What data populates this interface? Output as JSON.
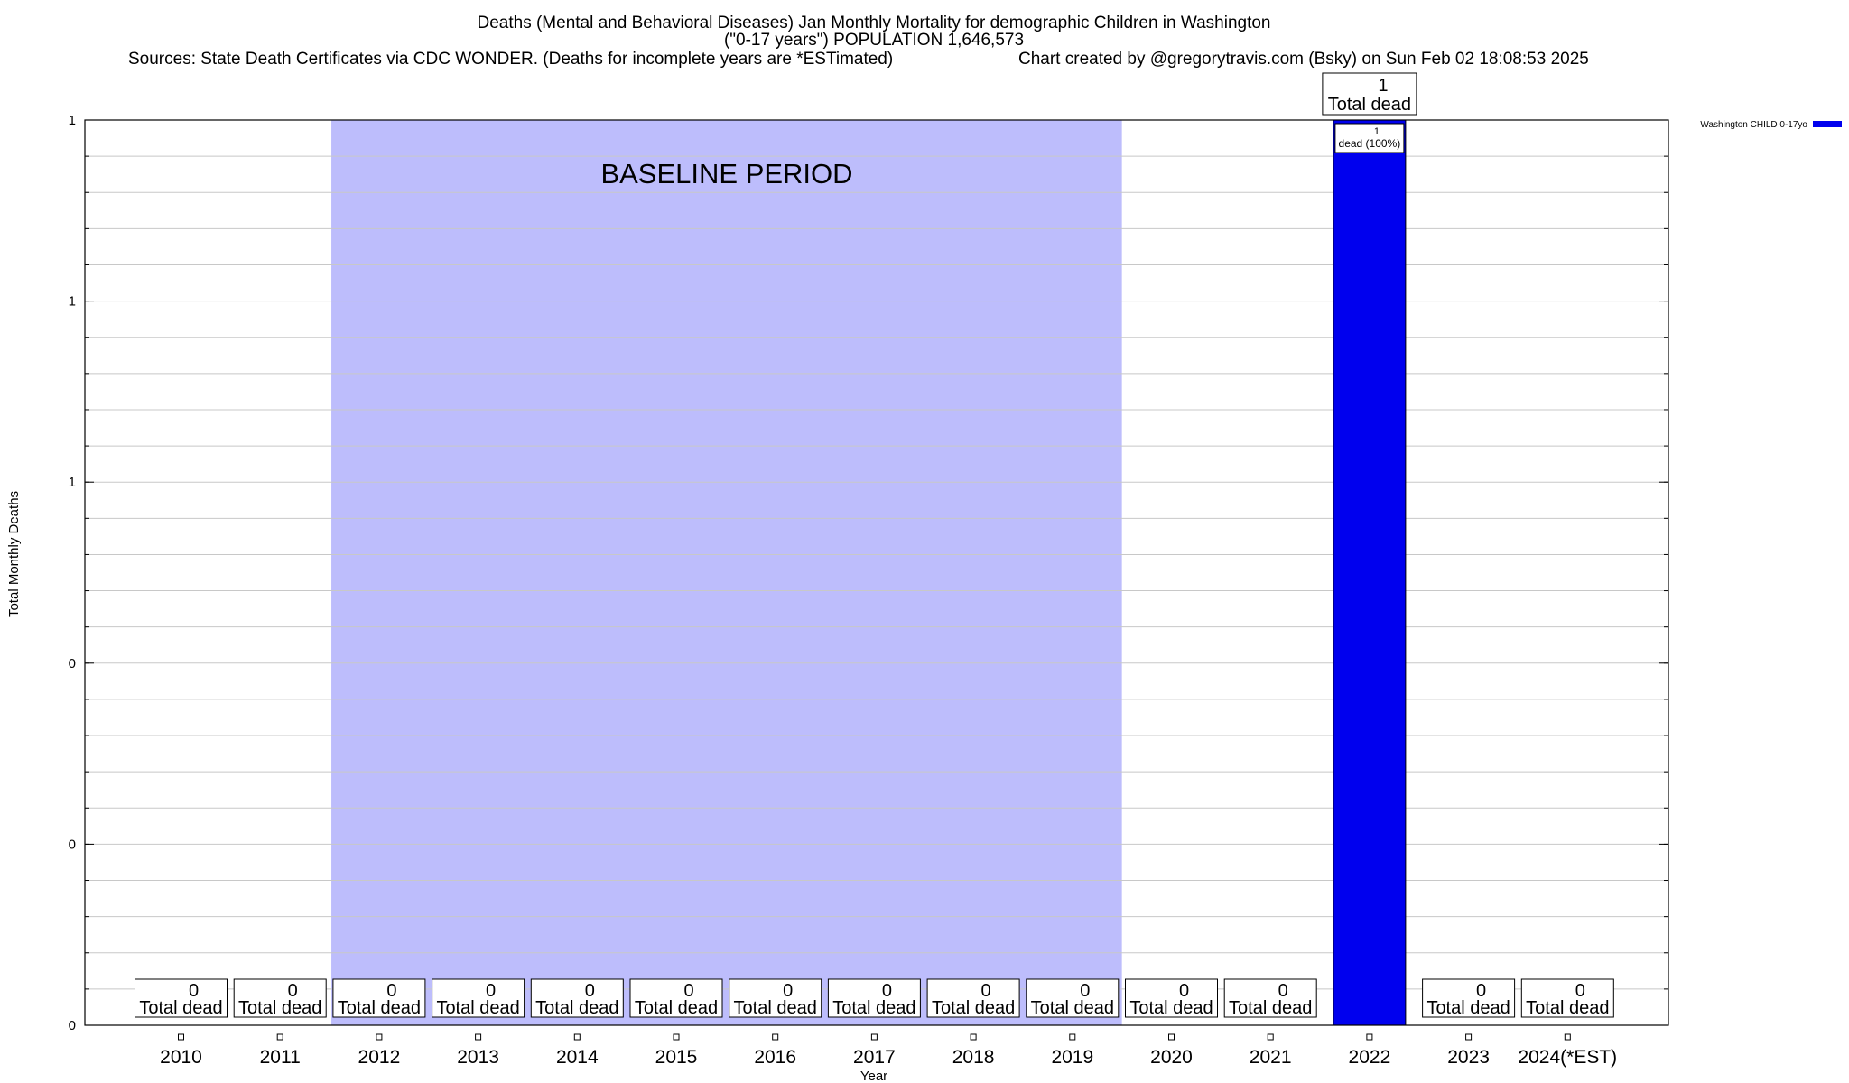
{
  "chart_data": {
    "type": "bar",
    "title_lines": [
      "Deaths (Mental and Behavioral Diseases) Jan Monthly Mortality for demographic Children in Washington",
      "(\"0-17 years\") POPULATION 1,646,573"
    ],
    "sources": "Sources: State Death Certificates via CDC WONDER. (Deaths for incomplete years are *ESTimated)",
    "credit": "Chart created by @gregorytravis.com (Bsky) on Sun Feb 02 18:08:53 2025",
    "xlabel": "Year",
    "ylabel": "Total Monthly Deaths",
    "categories": [
      "2010",
      "2011",
      "2012",
      "2013",
      "2014",
      "2015",
      "2016",
      "2017",
      "2018",
      "2019",
      "2020",
      "2021",
      "2022",
      "2023",
      "2024(*EST)"
    ],
    "series": [
      {
        "name": "Washington CHILD 0-17yo",
        "color": "#0000ee",
        "values": [
          0,
          0,
          0,
          0,
          0,
          0,
          0,
          0,
          0,
          0,
          0,
          0,
          1,
          0,
          0
        ]
      }
    ],
    "ylim": [
      0,
      1
    ],
    "y_tick_labels": [
      "0",
      "0",
      "0",
      "1",
      "1",
      "1"
    ],
    "total_label_text": "Total dead",
    "bar_label_suffix": "dead (100%)",
    "baseline": {
      "label": "BASELINE PERIOD",
      "start": "2012",
      "end": "2019",
      "color": "#bdbdfc"
    },
    "grid": true,
    "legend_position": "top-right"
  }
}
